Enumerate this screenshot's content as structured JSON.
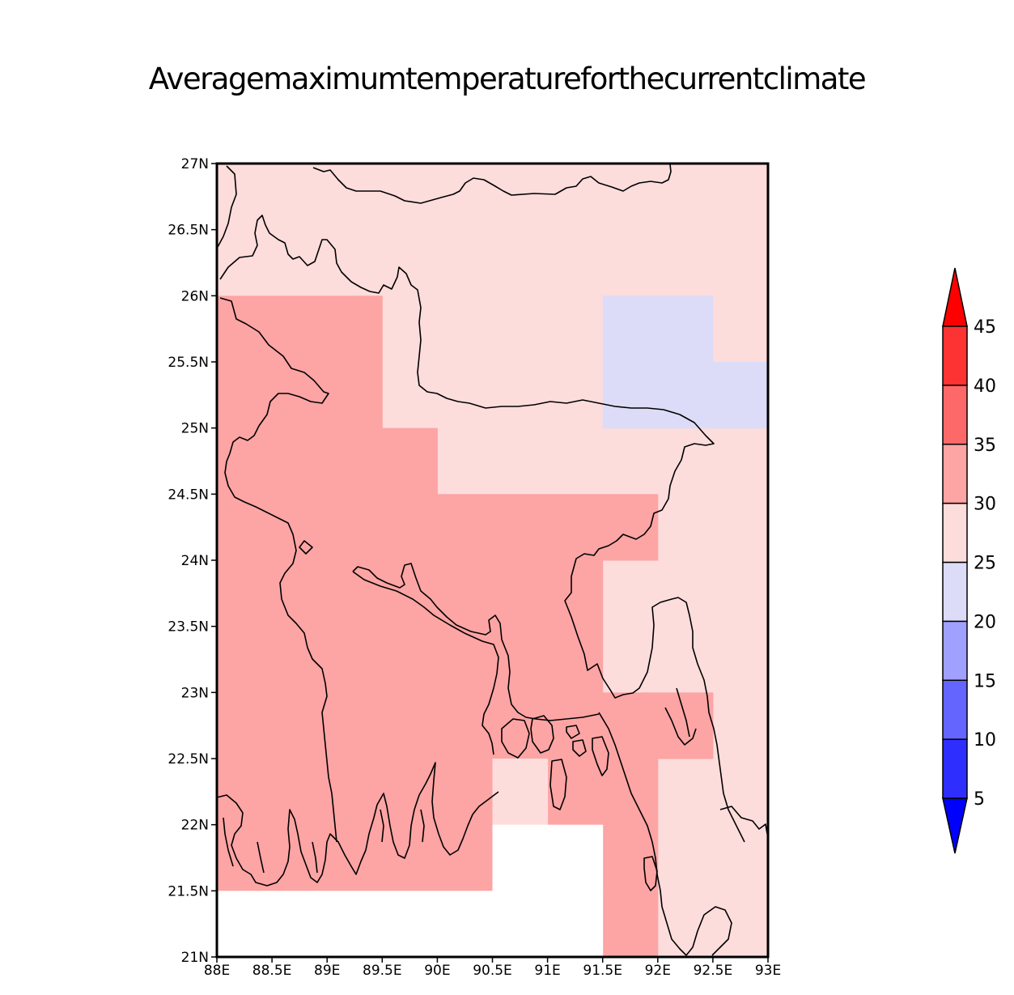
{
  "title": "Averagemaximumtemperatureforthecurrentclimate",
  "map": {
    "lon_range": [
      88,
      93
    ],
    "lat_range": [
      21,
      27
    ],
    "x_ticks": [
      {
        "v": 88,
        "label": "88E"
      },
      {
        "v": 88.5,
        "label": "88.5E"
      },
      {
        "v": 89,
        "label": "89E"
      },
      {
        "v": 89.5,
        "label": "89.5E"
      },
      {
        "v": 90,
        "label": "90E"
      },
      {
        "v": 90.5,
        "label": "90.5E"
      },
      {
        "v": 91,
        "label": "91E"
      },
      {
        "v": 91.5,
        "label": "91.5E"
      },
      {
        "v": 92,
        "label": "92E"
      },
      {
        "v": 92.5,
        "label": "92.5E"
      },
      {
        "v": 93,
        "label": "93E"
      }
    ],
    "y_ticks": [
      {
        "v": 21,
        "label": "21N"
      },
      {
        "v": 21.5,
        "label": "21.5N"
      },
      {
        "v": 22,
        "label": "22N"
      },
      {
        "v": 22.5,
        "label": "22.5N"
      },
      {
        "v": 23,
        "label": "23N"
      },
      {
        "v": 23.5,
        "label": "23.5N"
      },
      {
        "v": 24,
        "label": "24N"
      },
      {
        "v": 24.5,
        "label": "24.5N"
      },
      {
        "v": 25,
        "label": "25N"
      },
      {
        "v": 25.5,
        "label": "25.5N"
      },
      {
        "v": 26,
        "label": "26N"
      },
      {
        "v": 26.5,
        "label": "26.5N"
      },
      {
        "v": 27,
        "label": "27N"
      }
    ],
    "background_class": "25-30",
    "cells": [
      {
        "lon0": 88,
        "lon1": 89.5,
        "lat0": 21.5,
        "lat1": 26,
        "cls": "30-35"
      },
      {
        "lon0": 89.5,
        "lon1": 90,
        "lat0": 21.5,
        "lat1": 25,
        "cls": "30-35"
      },
      {
        "lon0": 90,
        "lon1": 90.5,
        "lat0": 21.5,
        "lat1": 24.5,
        "cls": "30-35"
      },
      {
        "lon0": 90.5,
        "lon1": 91.5,
        "lat0": 22.5,
        "lat1": 24.5,
        "cls": "30-35"
      },
      {
        "lon0": 91.5,
        "lon1": 92,
        "lat0": 24,
        "lat1": 24.5,
        "cls": "30-35"
      },
      {
        "lon0": 91,
        "lon1": 91.5,
        "lat0": 22,
        "lat1": 22.5,
        "cls": "30-35"
      },
      {
        "lon0": 91.5,
        "lon1": 92,
        "lat0": 21,
        "lat1": 23,
        "cls": "30-35"
      },
      {
        "lon0": 92,
        "lon1": 92.5,
        "lat0": 22.5,
        "lat1": 23,
        "cls": "30-35"
      },
      {
        "lon0": 90.5,
        "lon1": 91,
        "lat0": 22,
        "lat1": 22.5,
        "cls": "25-30"
      },
      {
        "lon0": 91.5,
        "lon1": 92.5,
        "lat0": 25,
        "lat1": 26,
        "cls": "20-25"
      },
      {
        "lon0": 92.5,
        "lon1": 93,
        "lat0": 25,
        "lat1": 25.5,
        "cls": "20-25"
      },
      {
        "lon0": 88,
        "lon1": 91.5,
        "lat0": 21,
        "lat1": 21.5,
        "cls": "missing"
      },
      {
        "lon0": 90.5,
        "lon1": 91.5,
        "lat0": 21.5,
        "lat1": 22,
        "cls": "missing"
      }
    ]
  },
  "legend": {
    "classes": [
      {
        "id": "<5",
        "color": "#0000ff"
      },
      {
        "id": "5-10",
        "color": "#2e2eff"
      },
      {
        "id": "10-15",
        "color": "#6464ff"
      },
      {
        "id": "15-20",
        "color": "#a0a0ff"
      },
      {
        "id": "20-25",
        "color": "#dcdcf8"
      },
      {
        "id": "25-30",
        "color": "#fddcdc"
      },
      {
        "id": "30-35",
        "color": "#fda4a4"
      },
      {
        "id": "35-40",
        "color": "#fd6868"
      },
      {
        "id": "40-45",
        "color": "#fd3333"
      },
      {
        "id": ">45",
        "color": "#ff0000"
      }
    ],
    "missing_color": "#ffffff",
    "labels": [
      "5",
      "10",
      "15",
      "20",
      "25",
      "30",
      "35",
      "40",
      "45"
    ]
  }
}
